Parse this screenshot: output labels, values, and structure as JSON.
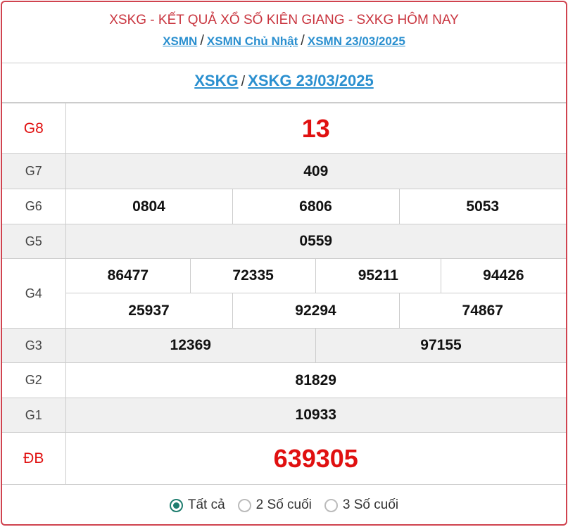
{
  "header": {
    "title": "XSKG - KẾT QUẢ XỔ SỐ KIÊN GIANG - SXKG HÔM NAY",
    "breadcrumb": [
      "XSMN",
      "XSMN Chủ Nhật",
      "XSMN 23/03/2025"
    ],
    "separator": "/"
  },
  "subheader": {
    "links": [
      "XSKG",
      "XSKG 23/03/2025"
    ]
  },
  "prizes": {
    "g8": {
      "label": "G8",
      "values": [
        "13"
      ]
    },
    "g7": {
      "label": "G7",
      "values": [
        "409"
      ]
    },
    "g6": {
      "label": "G6",
      "values": [
        "0804",
        "6806",
        "5053"
      ]
    },
    "g5": {
      "label": "G5",
      "values": [
        "0559"
      ]
    },
    "g4": {
      "label": "G4",
      "values": [
        "86477",
        "72335",
        "95211",
        "94426",
        "25937",
        "92294",
        "74867"
      ]
    },
    "g3": {
      "label": "G3",
      "values": [
        "12369",
        "97155"
      ]
    },
    "g2": {
      "label": "G2",
      "values": [
        "81829"
      ]
    },
    "g1": {
      "label": "G1",
      "values": [
        "10933"
      ]
    },
    "db": {
      "label": "ĐB",
      "values": [
        "639305"
      ]
    }
  },
  "filter": {
    "options": [
      "Tất cả",
      "2 Số cuối",
      "3 Số cuối"
    ],
    "selected": "Tất cả"
  },
  "colors": {
    "accent_red": "#e01010",
    "link_blue": "#2a8fcf",
    "border_red": "#d0434f",
    "radio_green": "#1f7d6f"
  }
}
